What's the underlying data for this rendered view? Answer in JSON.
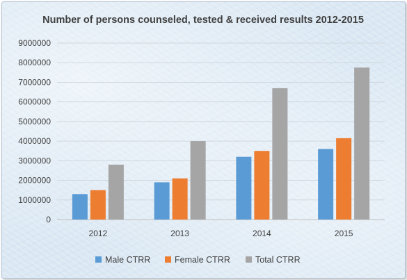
{
  "chart_data": {
    "type": "bar",
    "title": "Number of persons counseled, tested & received results 2012-2015",
    "categories": [
      "2012",
      "2013",
      "2014",
      "2015"
    ],
    "series": [
      {
        "name": "Male CTRR",
        "color": "#5b9bd5",
        "values": [
          1300000,
          1900000,
          3200000,
          3600000
        ]
      },
      {
        "name": "Female CTRR",
        "color": "#ed7d31",
        "values": [
          1500000,
          2100000,
          3500000,
          4150000
        ]
      },
      {
        "name": "Total CTRR",
        "color": "#a5a5a5",
        "values": [
          2800000,
          4000000,
          6700000,
          7750000
        ]
      }
    ],
    "ylim": [
      0,
      9000000
    ],
    "yticks": [
      0,
      1000000,
      2000000,
      3000000,
      4000000,
      5000000,
      6000000,
      7000000,
      8000000,
      9000000
    ],
    "xlabel": "",
    "ylabel": "",
    "grid": true,
    "legend": "bottom"
  }
}
